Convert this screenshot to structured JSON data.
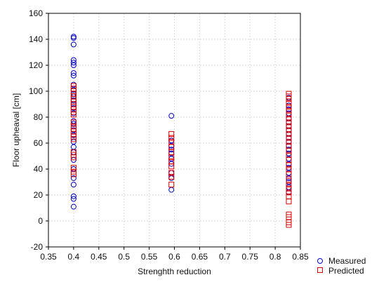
{
  "chart_data": {
    "type": "scatter",
    "title": "",
    "xlabel": "Strenghth reduction",
    "ylabel": "Floor upheaval [cm]",
    "xlim": [
      0.35,
      0.85
    ],
    "ylim": [
      -20,
      160
    ],
    "xticks": [
      0.35,
      0.4,
      0.45,
      0.5,
      0.55,
      0.6,
      0.65,
      0.7,
      0.75,
      0.8,
      0.85
    ],
    "xtick_labels": [
      "0.35",
      "0.4",
      "0.45",
      "0.5",
      "0.55",
      "0.6",
      "0.65",
      "0.7",
      "0.75",
      "0.8",
      "0.85"
    ],
    "yticks": [
      -20,
      0,
      20,
      40,
      60,
      80,
      100,
      120,
      140,
      160
    ],
    "ytick_labels": [
      "-20",
      "0",
      "20",
      "40",
      "60",
      "80",
      "100",
      "120",
      "140",
      "160"
    ],
    "grid": true,
    "legend_position": "bottom-right, outside plot",
    "series": [
      {
        "name": "Measured",
        "marker": "circle",
        "color": "#0000cc",
        "points": [
          [
            0.4,
            142
          ],
          [
            0.4,
            141
          ],
          [
            0.4,
            136
          ],
          [
            0.4,
            124
          ],
          [
            0.4,
            122
          ],
          [
            0.4,
            120
          ],
          [
            0.4,
            114
          ],
          [
            0.4,
            112
          ],
          [
            0.4,
            105
          ],
          [
            0.4,
            101
          ],
          [
            0.4,
            98
          ],
          [
            0.4,
            96
          ],
          [
            0.4,
            93
          ],
          [
            0.4,
            90
          ],
          [
            0.4,
            87
          ],
          [
            0.4,
            83
          ],
          [
            0.4,
            77
          ],
          [
            0.4,
            75
          ],
          [
            0.4,
            70
          ],
          [
            0.4,
            66
          ],
          [
            0.4,
            61
          ],
          [
            0.4,
            57
          ],
          [
            0.4,
            53
          ],
          [
            0.4,
            47
          ],
          [
            0.4,
            40
          ],
          [
            0.4,
            33
          ],
          [
            0.4,
            28
          ],
          [
            0.4,
            19
          ],
          [
            0.4,
            17
          ],
          [
            0.4,
            11
          ],
          [
            0.594,
            81
          ],
          [
            0.594,
            62
          ],
          [
            0.594,
            58
          ],
          [
            0.594,
            55
          ],
          [
            0.594,
            52
          ],
          [
            0.594,
            48
          ],
          [
            0.594,
            44
          ],
          [
            0.594,
            37
          ],
          [
            0.594,
            33
          ],
          [
            0.594,
            24
          ],
          [
            0.827,
            95
          ],
          [
            0.827,
            89
          ],
          [
            0.827,
            86
          ],
          [
            0.827,
            83
          ],
          [
            0.827,
            79
          ],
          [
            0.827,
            76
          ],
          [
            0.827,
            73
          ],
          [
            0.827,
            70
          ],
          [
            0.827,
            67
          ],
          [
            0.827,
            64
          ],
          [
            0.827,
            61
          ],
          [
            0.827,
            58
          ],
          [
            0.827,
            55
          ],
          [
            0.827,
            52
          ],
          [
            0.827,
            48
          ],
          [
            0.827,
            44
          ],
          [
            0.827,
            41
          ],
          [
            0.827,
            37
          ],
          [
            0.827,
            33
          ],
          [
            0.827,
            30
          ],
          [
            0.827,
            26
          ],
          [
            0.827,
            22
          ]
        ]
      },
      {
        "name": "Predicted",
        "marker": "square",
        "color": "#dd0000",
        "points": [
          [
            0.4,
            104
          ],
          [
            0.4,
            102
          ],
          [
            0.4,
            100
          ],
          [
            0.4,
            98
          ],
          [
            0.4,
            96
          ],
          [
            0.4,
            94
          ],
          [
            0.4,
            92
          ],
          [
            0.4,
            90
          ],
          [
            0.4,
            88
          ],
          [
            0.4,
            86
          ],
          [
            0.4,
            84
          ],
          [
            0.4,
            82
          ],
          [
            0.4,
            76
          ],
          [
            0.4,
            73
          ],
          [
            0.4,
            71
          ],
          [
            0.4,
            69
          ],
          [
            0.4,
            67
          ],
          [
            0.4,
            65
          ],
          [
            0.4,
            63
          ],
          [
            0.4,
            53
          ],
          [
            0.4,
            51
          ],
          [
            0.4,
            49
          ],
          [
            0.4,
            41
          ],
          [
            0.4,
            38
          ],
          [
            0.4,
            36
          ],
          [
            0.594,
            67
          ],
          [
            0.594,
            64
          ],
          [
            0.594,
            61
          ],
          [
            0.594,
            57
          ],
          [
            0.594,
            53
          ],
          [
            0.594,
            49
          ],
          [
            0.594,
            46
          ],
          [
            0.594,
            42
          ],
          [
            0.594,
            37
          ],
          [
            0.594,
            34
          ],
          [
            0.594,
            28
          ],
          [
            0.827,
            98
          ],
          [
            0.827,
            96
          ],
          [
            0.827,
            94
          ],
          [
            0.827,
            91
          ],
          [
            0.827,
            88
          ],
          [
            0.827,
            85
          ],
          [
            0.827,
            82
          ],
          [
            0.827,
            79
          ],
          [
            0.827,
            76
          ],
          [
            0.827,
            73
          ],
          [
            0.827,
            70
          ],
          [
            0.827,
            67
          ],
          [
            0.827,
            64
          ],
          [
            0.827,
            61
          ],
          [
            0.827,
            58
          ],
          [
            0.827,
            54
          ],
          [
            0.827,
            51
          ],
          [
            0.827,
            47
          ],
          [
            0.827,
            43
          ],
          [
            0.827,
            40
          ],
          [
            0.827,
            36
          ],
          [
            0.827,
            31
          ],
          [
            0.827,
            28
          ],
          [
            0.827,
            25
          ],
          [
            0.827,
            22
          ],
          [
            0.827,
            19
          ],
          [
            0.827,
            15
          ],
          [
            0.827,
            5
          ],
          [
            0.827,
            3
          ],
          [
            0.827,
            -1
          ],
          [
            0.827,
            -3
          ]
        ]
      }
    ]
  }
}
